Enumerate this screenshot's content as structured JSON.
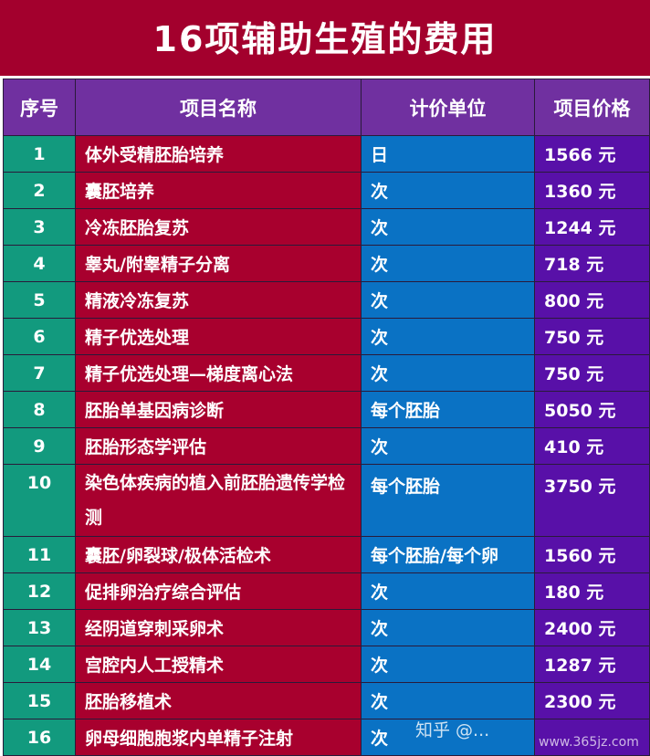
{
  "title": "16项辅助生殖的费用",
  "headers": [
    "序号",
    "项目名称",
    "计价单位",
    "项目价格"
  ],
  "rows": [
    [
      "1",
      "体外受精胚胎培养",
      "日",
      "1566 元"
    ],
    [
      "2",
      "囊胚培养",
      "次",
      "1360 元"
    ],
    [
      "3",
      "冷冻胚胎复苏",
      "次",
      "1244 元"
    ],
    [
      "4",
      "睾丸/附睾精子分离",
      "次",
      "718 元"
    ],
    [
      "5",
      "精液冷冻复苏",
      "次",
      "800 元"
    ],
    [
      "6",
      "精子优选处理",
      "次",
      "750 元"
    ],
    [
      "7",
      "精子优选处理—梯度离心法",
      "次",
      "750 元"
    ],
    [
      "8",
      "胚胎单基因病诊断",
      "每个胚胎",
      "5050 元"
    ],
    [
      "9",
      "胚胎形态学评估",
      "次",
      "410 元"
    ],
    [
      "10",
      "染色体疾病的植入前胚胎遗传学检测",
      "每个胚胎",
      "3750 元"
    ],
    [
      "11",
      "囊胚/卵裂球/极体活检术",
      "每个胚胎/每个卵",
      "1560 元"
    ],
    [
      "12",
      "促排卵治疗综合评估",
      "次",
      "180 元"
    ],
    [
      "13",
      "经阴道穿刺采卵术",
      "次",
      "2400 元"
    ],
    [
      "14",
      "宫腔内人工授精术",
      "次",
      "1287 元"
    ],
    [
      "15",
      "胚胎移植术",
      "次",
      "2300 元"
    ],
    [
      "16",
      "卵母细胞胞浆内单精子注射",
      "次",
      ""
    ]
  ],
  "watermark": {
    "text": "知乎 @...",
    "site": "www.365jz.com"
  }
}
